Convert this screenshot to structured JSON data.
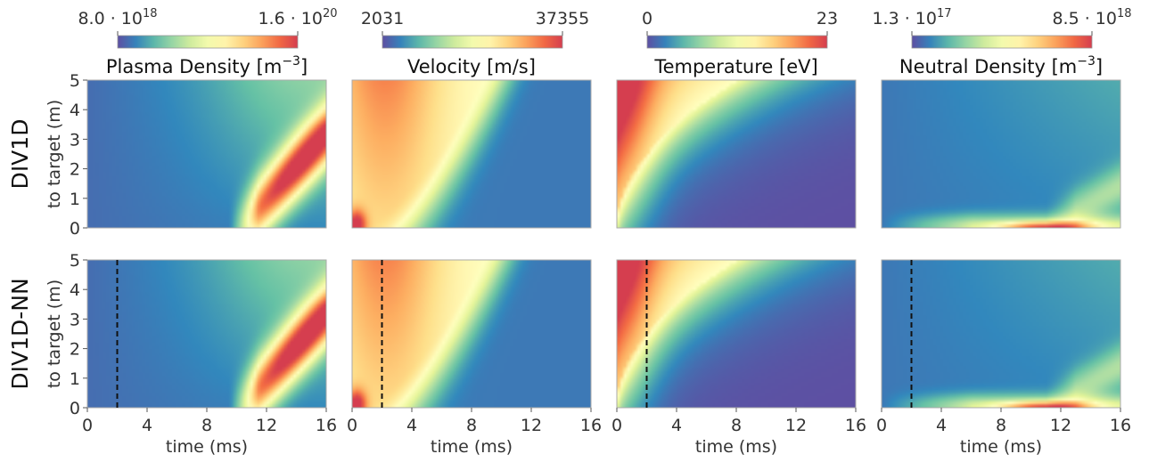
{
  "chart_data": {
    "type": "heatmap",
    "x_label": "time (ms)",
    "y_label": "to target (m)",
    "x_range": [
      0,
      16
    ],
    "y_range": [
      0,
      5
    ],
    "x_ticks": [
      "0",
      "4",
      "8",
      "12",
      "16"
    ],
    "y_ticks": [
      "0",
      "1",
      "2",
      "3",
      "4",
      "5"
    ],
    "rows": [
      "DIV1D",
      "DIV1D-NN"
    ],
    "dashed_line_time_ms": 2,
    "dashed_line_rows": [
      "DIV1D-NN"
    ],
    "colormap": "spectral_reversed",
    "colormap_stops": [
      "#5e4fa2",
      "#3288bd",
      "#66c2a5",
      "#abdda4",
      "#e6f598",
      "#ffffbf",
      "#fee08b",
      "#fdae61",
      "#f46d43",
      "#d53e4f"
    ],
    "panels": [
      {
        "title": "Plasma Density [m",
        "title_sup": "−3",
        "title_end": "]",
        "cbar_min": "8.0 · 10",
        "cbar_min_exp": "18",
        "cbar_max": "1.6 · 10",
        "cbar_max_exp": "20",
        "field": "density"
      },
      {
        "title": "Velocity [m/s]",
        "title_sup": "",
        "title_end": "",
        "cbar_min": "2031",
        "cbar_min_exp": "",
        "cbar_max": "37355",
        "cbar_max_exp": "",
        "field": "velocity"
      },
      {
        "title": "Temperature [eV]",
        "title_sup": "",
        "title_end": "",
        "cbar_min": "0",
        "cbar_min_exp": "",
        "cbar_max": "23",
        "cbar_max_exp": "",
        "field": "temperature"
      },
      {
        "title": "Neutral Density [m",
        "title_sup": "−3",
        "title_end": "]",
        "cbar_min": "1.3 · 10",
        "cbar_min_exp": "17",
        "cbar_max": "8.5 · 10",
        "cbar_max_exp": "18",
        "field": "neutral"
      }
    ]
  }
}
